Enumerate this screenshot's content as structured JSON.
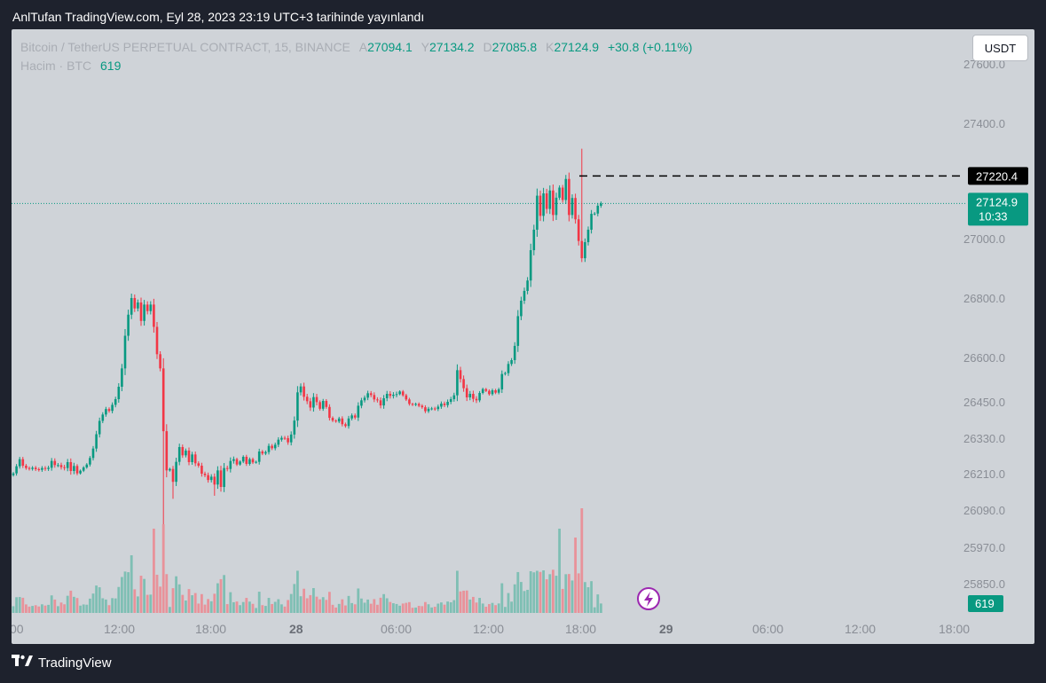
{
  "publish_title": "AnlTufan TradingView.com, Eyl 28, 2023 23:19 UTC+3 tarihinde yayınlandı",
  "legend": {
    "symbol": "Bitcoin / TetherUS PERPETUAL CONTRACT, 15, BINANCE",
    "o_label": "A",
    "o_value": "27094.1",
    "h_label": "Y",
    "h_value": "27134.2",
    "l_label": "D",
    "l_value": "27085.8",
    "c_label": "K",
    "c_value": "27124.9",
    "change": "+30.8 (+0.11%)",
    "volume_label": "Hacim · BTC",
    "volume_value": "619"
  },
  "currency_button": "USDT",
  "footer_brand": "TradingView",
  "colors": {
    "up": "#089981",
    "down": "#f23645",
    "up_volume": "#7fbfb4",
    "down_volume": "#e8929a",
    "background": "#1e222d",
    "plot": "#cfd3d8"
  },
  "chart_data": {
    "type": "candlestick",
    "price_axis": [
      "27600.0",
      "27400.0",
      "27000.0",
      "26800.0",
      "26600.0",
      "26450.0",
      "26330.0",
      "26210.0",
      "26090.0",
      "25970.0",
      "25850.0"
    ],
    "time_axis": [
      "00",
      "12:00",
      "18:00",
      "28",
      "06:00",
      "12:00",
      "18:00",
      "29",
      "06:00",
      "12:00",
      "18:00"
    ],
    "time_axis_bold": [
      "28",
      "29"
    ],
    "last_price": "27124.9",
    "countdown": "10:33",
    "last_volume": "619",
    "horizontal_line": "27220.4",
    "closes": [
      26214,
      26238,
      26262,
      26240,
      26232,
      26229,
      26233,
      26228,
      26226,
      26232,
      26229,
      26233,
      26256,
      26242,
      26242,
      26235,
      26232,
      26252,
      26222,
      26239,
      26214,
      26223,
      26234,
      26244,
      26266,
      26298,
      26346,
      26390,
      26411,
      26429,
      26423,
      26443,
      26462,
      26504,
      26566,
      26676,
      26747,
      26803,
      26768,
      26788,
      26726,
      26781,
      26759,
      26781,
      26706,
      26614,
      26566,
      26356,
      26224,
      26229,
      26186,
      26253,
      26303,
      26275,
      26291,
      26252,
      26278,
      26248,
      26240,
      26213,
      26208,
      26192,
      26203,
      26177,
      26224,
      26169,
      26232,
      26229,
      26256,
      26262,
      26244,
      26254,
      26270,
      26246,
      26262,
      26251,
      26253,
      26288,
      26281,
      26286,
      26307,
      26299,
      26311,
      26328,
      26334,
      26333,
      26319,
      26345,
      26391,
      26485,
      26505,
      26470,
      26455,
      26434,
      26469,
      26452,
      26430,
      26456,
      26436,
      26400,
      26391,
      26388,
      26398,
      26379,
      26373,
      26398,
      26408,
      26401,
      26440,
      26458,
      26467,
      26482,
      26476,
      26461,
      26458,
      26441,
      26465,
      26480,
      26473,
      26477,
      26479,
      26488,
      26475,
      26461,
      26446,
      26443,
      26446,
      26440,
      26435,
      26422,
      26430,
      26431,
      26429,
      26437,
      26447,
      26442,
      26453,
      26462,
      26475,
      26560,
      26530,
      26499,
      26468,
      26480,
      26463,
      26458,
      26483,
      26496,
      26490,
      26479,
      26492,
      26484,
      26495,
      26547,
      26550,
      26581,
      26594,
      26642,
      26742,
      26794,
      26827,
      26862,
      26964,
      27034,
      27152,
      27082,
      27160,
      27106,
      27170,
      27085,
      27145,
      27180,
      27137,
      27210,
      27085,
      27144,
      27070,
      26995,
      26937,
      26991,
      27034,
      27089,
      27090,
      27117,
      27124.9
    ]
  }
}
